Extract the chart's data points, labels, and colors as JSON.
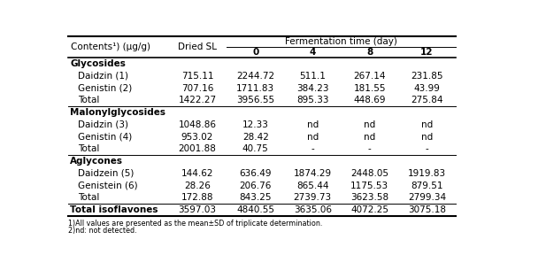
{
  "fermentation_header": "Fermentation time (day)",
  "col0_header": "Contents¹) (μg/g)",
  "col1_header": "Dried SL",
  "time_headers": [
    "0",
    "4",
    "8",
    "12"
  ],
  "rows": [
    {
      "label": "Glycosides",
      "indent": false,
      "bold": true,
      "values": [
        "",
        "",
        "",
        "",
        ""
      ]
    },
    {
      "label": "Daidzin (1)",
      "indent": true,
      "bold": false,
      "values": [
        "715.11",
        "2244.72",
        "511.1",
        "267.14",
        "231.85"
      ]
    },
    {
      "label": "Genistin (2)",
      "indent": true,
      "bold": false,
      "values": [
        "707.16",
        "1711.83",
        "384.23",
        "181.55",
        "43.99"
      ]
    },
    {
      "label": "Total",
      "indent": true,
      "bold": false,
      "values": [
        "1422.27",
        "3956.55",
        "895.33",
        "448.69",
        "275.84"
      ]
    },
    {
      "label": "Malonylglycosides",
      "indent": false,
      "bold": true,
      "values": [
        "",
        "",
        "",
        "",
        ""
      ]
    },
    {
      "label": "Daidzin (3)",
      "indent": true,
      "bold": false,
      "values": [
        "1048.86",
        "12.33",
        "nd",
        "nd",
        "nd"
      ]
    },
    {
      "label": "Genistin (4)",
      "indent": true,
      "bold": false,
      "values": [
        "953.02",
        "28.42",
        "nd",
        "nd",
        "nd"
      ]
    },
    {
      "label": "Total",
      "indent": true,
      "bold": false,
      "values": [
        "2001.88",
        "40.75",
        "-",
        "-",
        "-"
      ]
    },
    {
      "label": "Aglycones",
      "indent": false,
      "bold": true,
      "values": [
        "",
        "",
        "",
        "",
        ""
      ]
    },
    {
      "label": "Daidzein (5)",
      "indent": true,
      "bold": false,
      "values": [
        "144.62",
        "636.49",
        "1874.29",
        "2448.05",
        "1919.83"
      ]
    },
    {
      "label": "Genistein (6)",
      "indent": true,
      "bold": false,
      "values": [
        "28.26",
        "206.76",
        "865.44",
        "1175.53",
        "879.51"
      ]
    },
    {
      "label": "Total",
      "indent": true,
      "bold": false,
      "values": [
        "172.88",
        "843.25",
        "2739.73",
        "3623.58",
        "2799.34"
      ]
    },
    {
      "label": "Total isoflavones",
      "indent": false,
      "bold": true,
      "values": [
        "3597.03",
        "4840.55",
        "3635.06",
        "4072.25",
        "3075.18"
      ]
    }
  ],
  "footnote1": "1)All values are presented as the mean±SD of triplicate determination.",
  "footnote2": "2)nd: not detected.",
  "font_size": 7.5
}
